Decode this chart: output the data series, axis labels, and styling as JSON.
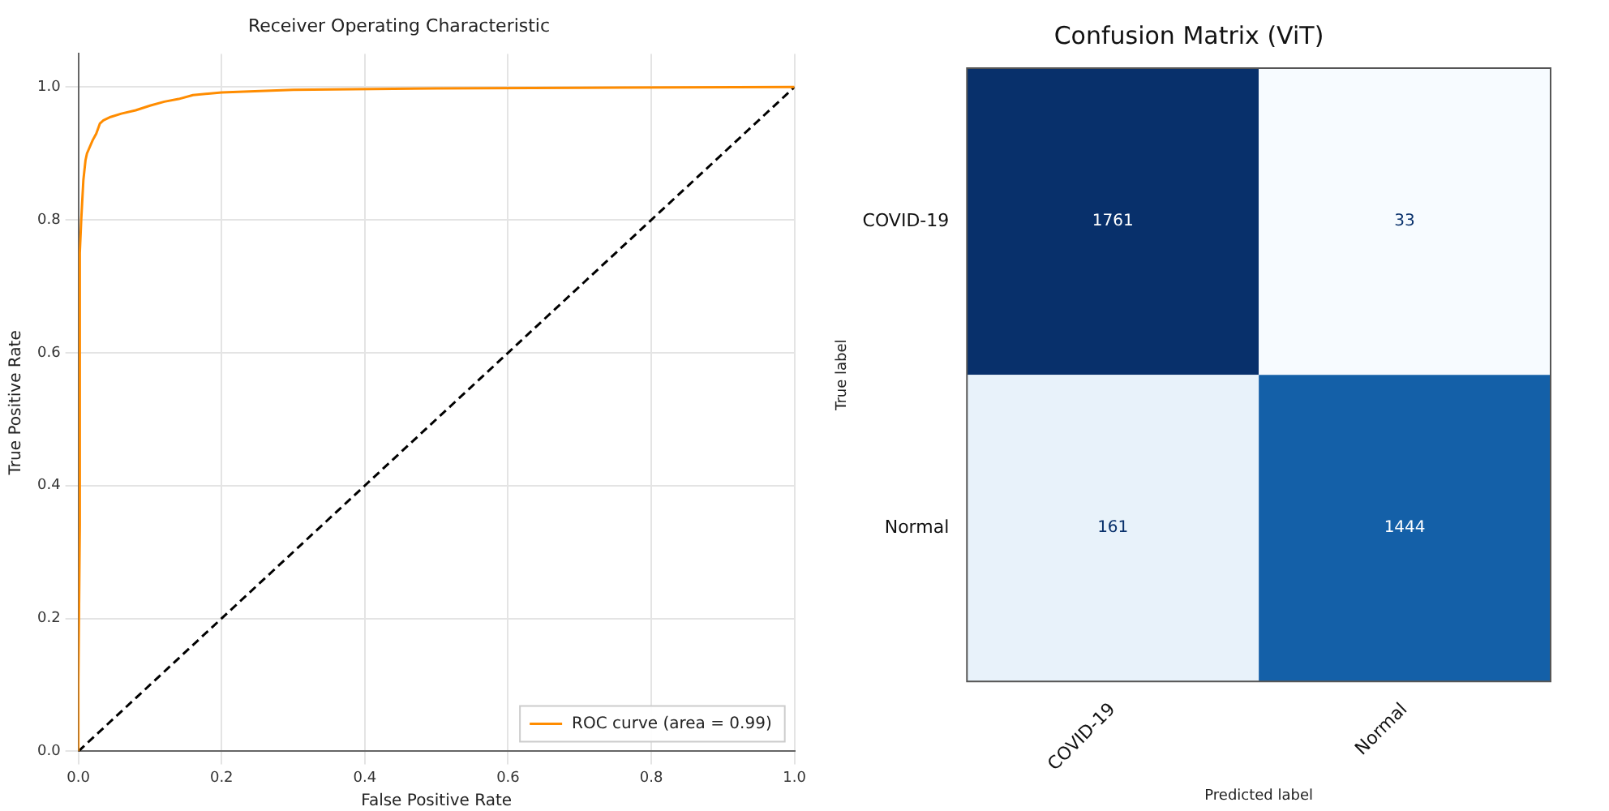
{
  "chart_data": [
    {
      "type": "line",
      "title": "Receiver Operating Characteristic",
      "xlabel": "False Positive Rate",
      "ylabel": "True Positive Rate",
      "xlim": [
        0,
        1
      ],
      "ylim": [
        0,
        1.05
      ],
      "xticks": [
        {
          "value": 0,
          "label": "0.0"
        },
        0.2,
        0.4,
        0.6,
        0.8,
        {
          "value": 1,
          "label": "1.0"
        }
      ],
      "yticks": [
        {
          "value": 0,
          "label": "0.0"
        },
        0.2,
        0.4,
        0.6,
        0.8,
        {
          "value": 1,
          "label": "1.0"
        }
      ],
      "grid": true,
      "legend": "bottom right",
      "marker": "none",
      "series": [
        {
          "name": "ROC curve (area = 0.99)",
          "color": "#ff8c00",
          "line_style": "solid",
          "x": [
            0,
            0,
            0.002,
            0.002,
            0.004,
            0.007,
            0.01,
            0.012,
            0.02,
            0.025,
            0.03,
            0.035,
            0.045,
            0.06,
            0.08,
            0.1,
            0.12,
            0.14,
            0.16,
            0.2,
            0.3,
            0.5,
            0.7,
            1
          ],
          "values": [
            0,
            0.1,
            0.34,
            0.75,
            0.8,
            0.86,
            0.89,
            0.9,
            0.92,
            0.93,
            0.945,
            0.95,
            0.955,
            0.96,
            0.965,
            0.972,
            0.978,
            0.982,
            0.988,
            0.992,
            0.996,
            0.998,
            0.999,
            1
          ]
        },
        {
          "color": "#000000",
          "line_style": "dashed",
          "x": [
            0,
            1
          ],
          "values": [
            0,
            1
          ]
        }
      ]
    },
    {
      "type": "heatmap",
      "title": "Confusion Matrix (ViT)",
      "xlabel": "Predicted label",
      "ylabel": "True label",
      "categories": [
        "COVID-19",
        "Normal"
      ],
      "y_categories": [
        "COVID-19",
        "Normal"
      ],
      "cells": [
        [
          1761,
          33
        ],
        [
          161,
          1444
        ]
      ],
      "data_labels": true
    }
  ]
}
